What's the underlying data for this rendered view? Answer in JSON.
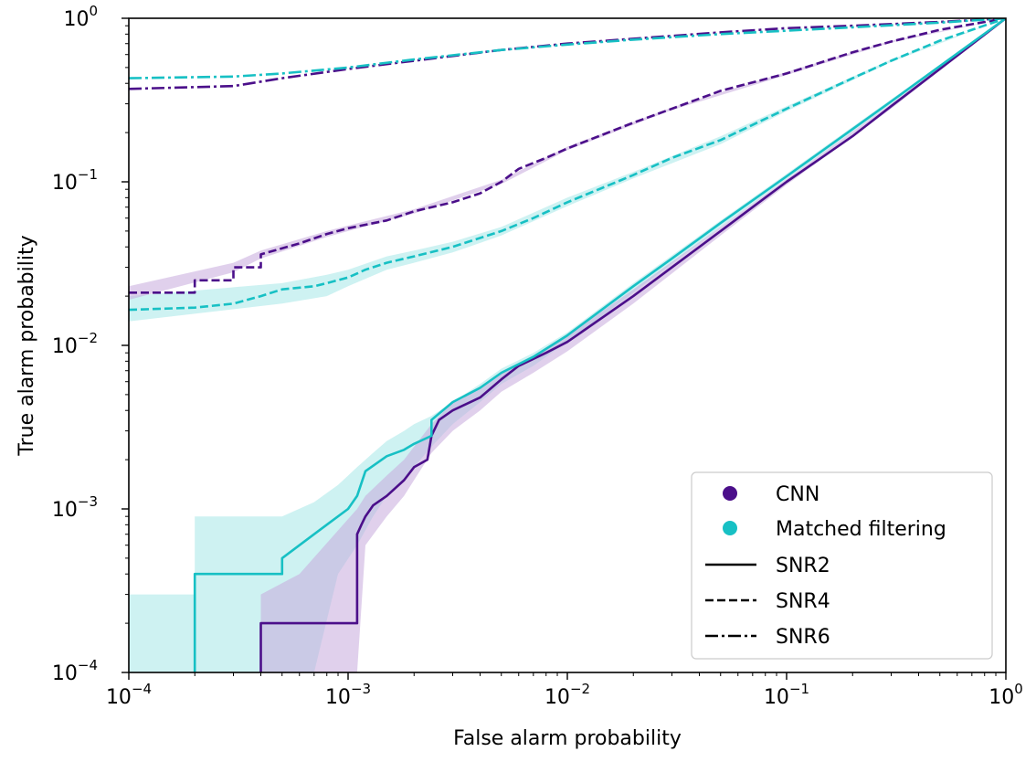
{
  "chart_data": {
    "type": "line",
    "title": "",
    "xlabel": "False alarm probability",
    "ylabel": "True alarm probability",
    "xscale": "log",
    "yscale": "log",
    "xlim": [
      0.0001,
      1
    ],
    "ylim": [
      0.0001,
      1
    ],
    "x_ticks": [
      {
        "value": 0.0001,
        "base": "10",
        "exp": "−4"
      },
      {
        "value": 0.001,
        "base": "10",
        "exp": "−3"
      },
      {
        "value": 0.01,
        "base": "10",
        "exp": "−2"
      },
      {
        "value": 0.1,
        "base": "10",
        "exp": "−1"
      },
      {
        "value": 1,
        "base": "10",
        "exp": "0"
      }
    ],
    "y_ticks": [
      {
        "value": 0.0001,
        "base": "10",
        "exp": "−4"
      },
      {
        "value": 0.001,
        "base": "10",
        "exp": "−3"
      },
      {
        "value": 0.01,
        "base": "10",
        "exp": "−2"
      },
      {
        "value": 0.1,
        "base": "10",
        "exp": "−1"
      },
      {
        "value": 1,
        "base": "10",
        "exp": "0"
      }
    ],
    "grid": false,
    "legend": {
      "position": "bottom-right",
      "entries": [
        {
          "label": "CNN",
          "marker": "circle",
          "color": "#4b0f8a"
        },
        {
          "label": "Matched filtering",
          "marker": "circle",
          "color": "#17c0c4"
        },
        {
          "label": "SNR2",
          "line": "solid",
          "color": "#000000"
        },
        {
          "label": "SNR4",
          "line": "dashed",
          "color": "#000000"
        },
        {
          "label": "SNR6",
          "line": "dashdot",
          "color": "#000000"
        }
      ]
    },
    "colors": {
      "cnn": "#4b0f8a",
      "mf": "#17c0c4",
      "cnn_band": "#c7a9dc",
      "mf_band": "#a6e7e8"
    },
    "series": [
      {
        "method": "CNN",
        "snr": "SNR2",
        "style": "solid",
        "color": "#4b0f8a",
        "x": [
          0.0004,
          0.0004,
          0.0011,
          0.0011,
          0.00115,
          0.0012,
          0.0013,
          0.0015,
          0.0018,
          0.002,
          0.0023,
          0.0024,
          0.0026,
          0.003,
          0.004,
          0.005,
          0.006,
          0.008,
          0.01,
          0.02,
          0.03,
          0.05,
          0.08,
          0.1,
          0.2,
          0.3,
          0.5,
          1
        ],
        "y": [
          0.0001,
          0.0002,
          0.0002,
          0.0007,
          0.0008,
          0.0009,
          0.00105,
          0.0012,
          0.0015,
          0.0018,
          0.002,
          0.0028,
          0.0035,
          0.004,
          0.0048,
          0.0062,
          0.0075,
          0.009,
          0.0105,
          0.02,
          0.03,
          0.05,
          0.08,
          0.1,
          0.19,
          0.29,
          0.49,
          1
        ]
      },
      {
        "method": "Matched filtering",
        "snr": "SNR2",
        "style": "solid",
        "color": "#17c0c4",
        "x": [
          0.0002,
          0.0002,
          0.0005,
          0.0005,
          0.0006,
          0.0007,
          0.0008,
          0.001,
          0.0011,
          0.0012,
          0.0015,
          0.0018,
          0.002,
          0.0024,
          0.0024,
          0.003,
          0.004,
          0.005,
          0.007,
          0.01,
          0.02,
          0.03,
          0.05,
          0.1,
          0.2,
          0.3,
          0.5,
          1
        ],
        "y": [
          0.0001,
          0.0004,
          0.0004,
          0.0005,
          0.0006,
          0.0007,
          0.0008,
          0.001,
          0.0012,
          0.0017,
          0.0021,
          0.0023,
          0.0025,
          0.0028,
          0.0035,
          0.0045,
          0.0055,
          0.0068,
          0.0085,
          0.0115,
          0.023,
          0.034,
          0.056,
          0.108,
          0.21,
          0.31,
          0.51,
          1
        ]
      },
      {
        "method": "CNN",
        "snr": "SNR4",
        "style": "dashed",
        "color": "#4b0f8a",
        "x": [
          0.0001,
          0.0002,
          0.0002,
          0.0003,
          0.0003,
          0.0004,
          0.0004,
          0.0006,
          0.0008,
          0.001,
          0.0015,
          0.002,
          0.003,
          0.004,
          0.005,
          0.006,
          0.008,
          0.01,
          0.02,
          0.03,
          0.05,
          0.1,
          0.2,
          0.3,
          0.5,
          1
        ],
        "y": [
          0.021,
          0.021,
          0.025,
          0.025,
          0.03,
          0.03,
          0.036,
          0.042,
          0.048,
          0.052,
          0.058,
          0.066,
          0.075,
          0.085,
          0.1,
          0.12,
          0.14,
          0.16,
          0.23,
          0.28,
          0.36,
          0.46,
          0.62,
          0.72,
          0.85,
          1
        ]
      },
      {
        "method": "Matched filtering",
        "snr": "SNR4",
        "style": "dashed",
        "color": "#17c0c4",
        "x": [
          0.0001,
          0.0002,
          0.0003,
          0.0004,
          0.0005,
          0.0007,
          0.0008,
          0.001,
          0.0012,
          0.0015,
          0.002,
          0.003,
          0.005,
          0.007,
          0.01,
          0.02,
          0.03,
          0.05,
          0.1,
          0.2,
          0.3,
          0.5,
          1
        ],
        "y": [
          0.0165,
          0.017,
          0.018,
          0.02,
          0.022,
          0.023,
          0.024,
          0.026,
          0.029,
          0.032,
          0.035,
          0.04,
          0.05,
          0.06,
          0.075,
          0.11,
          0.14,
          0.18,
          0.28,
          0.43,
          0.55,
          0.73,
          1
        ]
      },
      {
        "method": "CNN",
        "snr": "SNR6",
        "style": "dashdot",
        "color": "#4b0f8a",
        "x": [
          0.0001,
          0.0003,
          0.0005,
          0.001,
          0.002,
          0.005,
          0.01,
          0.02,
          0.05,
          0.1,
          0.2,
          0.5,
          1
        ],
        "y": [
          0.37,
          0.385,
          0.43,
          0.49,
          0.55,
          0.64,
          0.7,
          0.75,
          0.82,
          0.87,
          0.9,
          0.95,
          1
        ]
      },
      {
        "method": "Matched filtering",
        "snr": "SNR6",
        "style": "dashdot",
        "color": "#17c0c4",
        "x": [
          0.0001,
          0.0003,
          0.0005,
          0.001,
          0.002,
          0.005,
          0.01,
          0.02,
          0.05,
          0.1,
          0.2,
          0.5,
          1
        ],
        "y": [
          0.43,
          0.44,
          0.46,
          0.5,
          0.56,
          0.64,
          0.69,
          0.74,
          0.8,
          0.84,
          0.88,
          0.94,
          1
        ]
      }
    ],
    "bands": [
      {
        "method": "Matched filtering",
        "snr": "SNR2",
        "color": "#a6e7e8",
        "x": [
          0.0001,
          0.0002,
          0.0002,
          0.0005,
          0.0007,
          0.0009,
          0.0011,
          0.0013,
          0.0015,
          0.0018,
          0.002,
          0.0024,
          0.003,
          0.004,
          0.005,
          0.007,
          0.01,
          0.02,
          0.05,
          0.1,
          0.3,
          1
        ],
        "upper": [
          0.0003,
          0.0003,
          0.0009,
          0.0009,
          0.0011,
          0.0014,
          0.0018,
          0.0022,
          0.0026,
          0.003,
          0.0033,
          0.0037,
          0.0045,
          0.0058,
          0.0072,
          0.009,
          0.012,
          0.024,
          0.058,
          0.112,
          0.32,
          1
        ],
        "lower": [
          0.0001,
          0.0001,
          0.0001,
          0.0001,
          0.0001,
          0.0004,
          0.0006,
          0.0009,
          0.0012,
          0.0015,
          0.0018,
          0.0024,
          0.0033,
          0.0045,
          0.0058,
          0.0075,
          0.0105,
          0.021,
          0.053,
          0.104,
          0.3,
          1
        ]
      },
      {
        "method": "CNN",
        "snr": "SNR2",
        "color": "#c7a9dc",
        "x": [
          0.0004,
          0.0006,
          0.0011,
          0.0012,
          0.0015,
          0.0018,
          0.002,
          0.0024,
          0.003,
          0.004,
          0.005,
          0.007,
          0.01,
          0.02,
          0.05,
          0.1,
          0.3,
          1
        ],
        "upper": [
          0.0003,
          0.0004,
          0.001,
          0.0012,
          0.0016,
          0.002,
          0.0024,
          0.0033,
          0.0045,
          0.0055,
          0.0068,
          0.0085,
          0.0115,
          0.022,
          0.053,
          0.104,
          0.3,
          1
        ],
        "lower": [
          0.0001,
          0.0001,
          0.0001,
          0.0006,
          0.0009,
          0.0012,
          0.0015,
          0.0022,
          0.003,
          0.004,
          0.0052,
          0.0068,
          0.0092,
          0.018,
          0.047,
          0.096,
          0.28,
          1
        ]
      },
      {
        "method": "Matched filtering",
        "snr": "SNR4",
        "color": "#a6e7e8",
        "x": [
          0.0001,
          0.0005,
          0.0008,
          0.001,
          0.0015,
          0.002,
          0.003,
          0.005,
          0.01,
          0.02,
          0.05,
          0.1,
          0.3,
          1
        ],
        "upper": [
          0.02,
          0.024,
          0.027,
          0.029,
          0.035,
          0.038,
          0.043,
          0.053,
          0.08,
          0.115,
          0.19,
          0.29,
          0.56,
          1
        ],
        "lower": [
          0.014,
          0.018,
          0.02,
          0.023,
          0.029,
          0.032,
          0.037,
          0.047,
          0.071,
          0.105,
          0.17,
          0.27,
          0.54,
          1
        ]
      },
      {
        "method": "CNN",
        "snr": "SNR4",
        "color": "#c7a9dc",
        "x": [
          0.0001,
          0.0003,
          0.0004,
          0.0008,
          0.001,
          0.002,
          0.005,
          0.01,
          0.03,
          0.1,
          0.3,
          1
        ],
        "upper": [
          0.023,
          0.032,
          0.038,
          0.05,
          0.054,
          0.068,
          0.103,
          0.164,
          0.285,
          0.47,
          0.73,
          1
        ],
        "lower": [
          0.019,
          0.028,
          0.034,
          0.046,
          0.05,
          0.064,
          0.097,
          0.156,
          0.275,
          0.45,
          0.71,
          1
        ]
      }
    ]
  }
}
